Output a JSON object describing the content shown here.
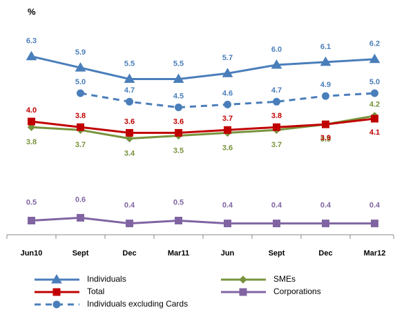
{
  "chart_data": {
    "type": "line",
    "y_label": "%",
    "categories": [
      "Jun10",
      "Sept",
      "Dec",
      "Mar11",
      "Jun",
      "Sept",
      "Dec",
      "Mar12"
    ],
    "ylim": [
      0,
      7.5
    ],
    "series": [
      {
        "name": "Individuals",
        "color": "#4a7ebb",
        "marker": "triangle",
        "dash": false,
        "values": [
          6.3,
          5.9,
          5.5,
          5.5,
          5.7,
          6.0,
          6.1,
          6.2
        ],
        "value_labels": [
          "6.3",
          "5.9",
          "5.5",
          "5.5",
          "5.7",
          "6.0",
          "6.1",
          "6.2"
        ]
      },
      {
        "name": "SMEs",
        "color": "#77933c",
        "marker": "diamond",
        "dash": false,
        "values": [
          3.8,
          3.7,
          3.4,
          3.5,
          3.6,
          3.7,
          3.9,
          4.2
        ],
        "value_labels": [
          "3.8",
          "3.7",
          "3.4",
          "3.5",
          "3.6",
          "3.7",
          "3.9",
          "4.2"
        ]
      },
      {
        "name": "Total",
        "color": "#c00000",
        "marker": "square",
        "dash": false,
        "values": [
          4.0,
          3.8,
          3.6,
          3.6,
          3.7,
          3.8,
          3.9,
          4.1
        ],
        "value_labels": [
          "4.0",
          "3.8",
          "3.6",
          "3.6",
          "3.7",
          "3.8",
          "3.9",
          "4.1"
        ]
      },
      {
        "name": "Corporations",
        "color": "#8064a2",
        "marker": "square",
        "dash": false,
        "values": [
          0.5,
          0.6,
          0.4,
          0.5,
          0.4,
          0.4,
          0.4,
          0.4
        ],
        "value_labels": [
          "0.5",
          "0.6",
          "0.4",
          "0.5",
          "0.4",
          "0.4",
          "0.4",
          "0.4"
        ]
      },
      {
        "name": "Individuals excluding Cards",
        "color": "#4a7ebb",
        "marker": "circle",
        "dash": true,
        "values": [
          null,
          5.0,
          4.7,
          4.5,
          4.6,
          4.7,
          4.9,
          5.0
        ],
        "value_labels": [
          null,
          "5.0",
          "4.7",
          "4.5",
          "4.6",
          "4.7",
          "4.9",
          "5.0"
        ]
      }
    ]
  }
}
